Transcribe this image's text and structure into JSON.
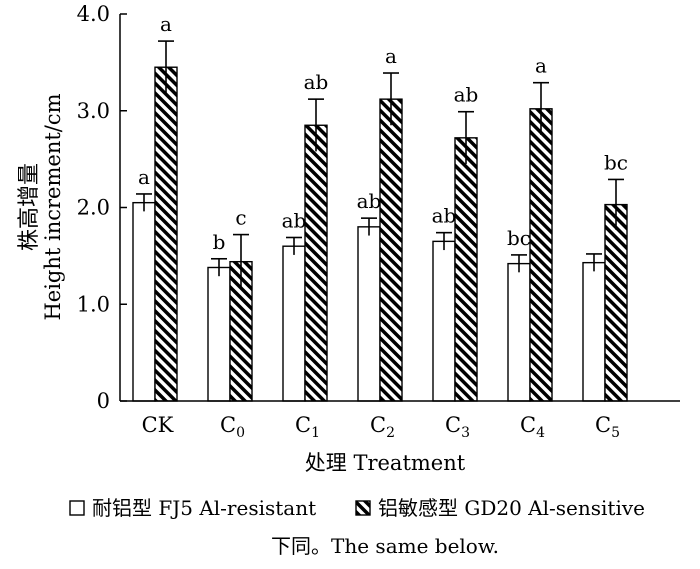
{
  "chart_data": {
    "type": "bar",
    "categories": [
      {
        "base": "CK",
        "sub": ""
      },
      {
        "base": "C",
        "sub": "0"
      },
      {
        "base": "C",
        "sub": "1"
      },
      {
        "base": "C",
        "sub": "2"
      },
      {
        "base": "C",
        "sub": "3"
      },
      {
        "base": "C",
        "sub": "4"
      },
      {
        "base": "C",
        "sub": "5"
      }
    ],
    "series": [
      {
        "name": "耐铝型 FJ5 Al-resistant",
        "pattern": "white",
        "values": [
          2.05,
          1.38,
          1.6,
          1.8,
          1.65,
          1.42,
          1.43
        ],
        "errors": [
          0.09,
          0.09,
          0.09,
          0.09,
          0.09,
          0.09,
          0.09
        ],
        "labels": [
          "a",
          "b",
          "ab",
          "ab",
          "ab",
          "bc",
          ""
        ]
      },
      {
        "name": "铝敏感型 GD20 Al-sensitive",
        "pattern": "hatched",
        "values": [
          3.45,
          1.44,
          2.85,
          3.12,
          2.72,
          3.02,
          2.03
        ],
        "errors": [
          0.27,
          0.28,
          0.27,
          0.27,
          0.27,
          0.27,
          0.26
        ],
        "labels": [
          "a",
          "c",
          "ab",
          "a",
          "ab",
          "a",
          "bc"
        ]
      }
    ],
    "ylabel_cn": "株高增量",
    "ylabel_en": "Height increment/cm",
    "xlabel": "处理 Treatment",
    "ylim": [
      0,
      4.0
    ],
    "yticks": [
      "0",
      "1.0",
      "2.0",
      "3.0",
      "4.0"
    ],
    "ytick_values": [
      0,
      1,
      2,
      3,
      4
    ],
    "legend_position": "bottom",
    "note": "下同。The same below."
  }
}
